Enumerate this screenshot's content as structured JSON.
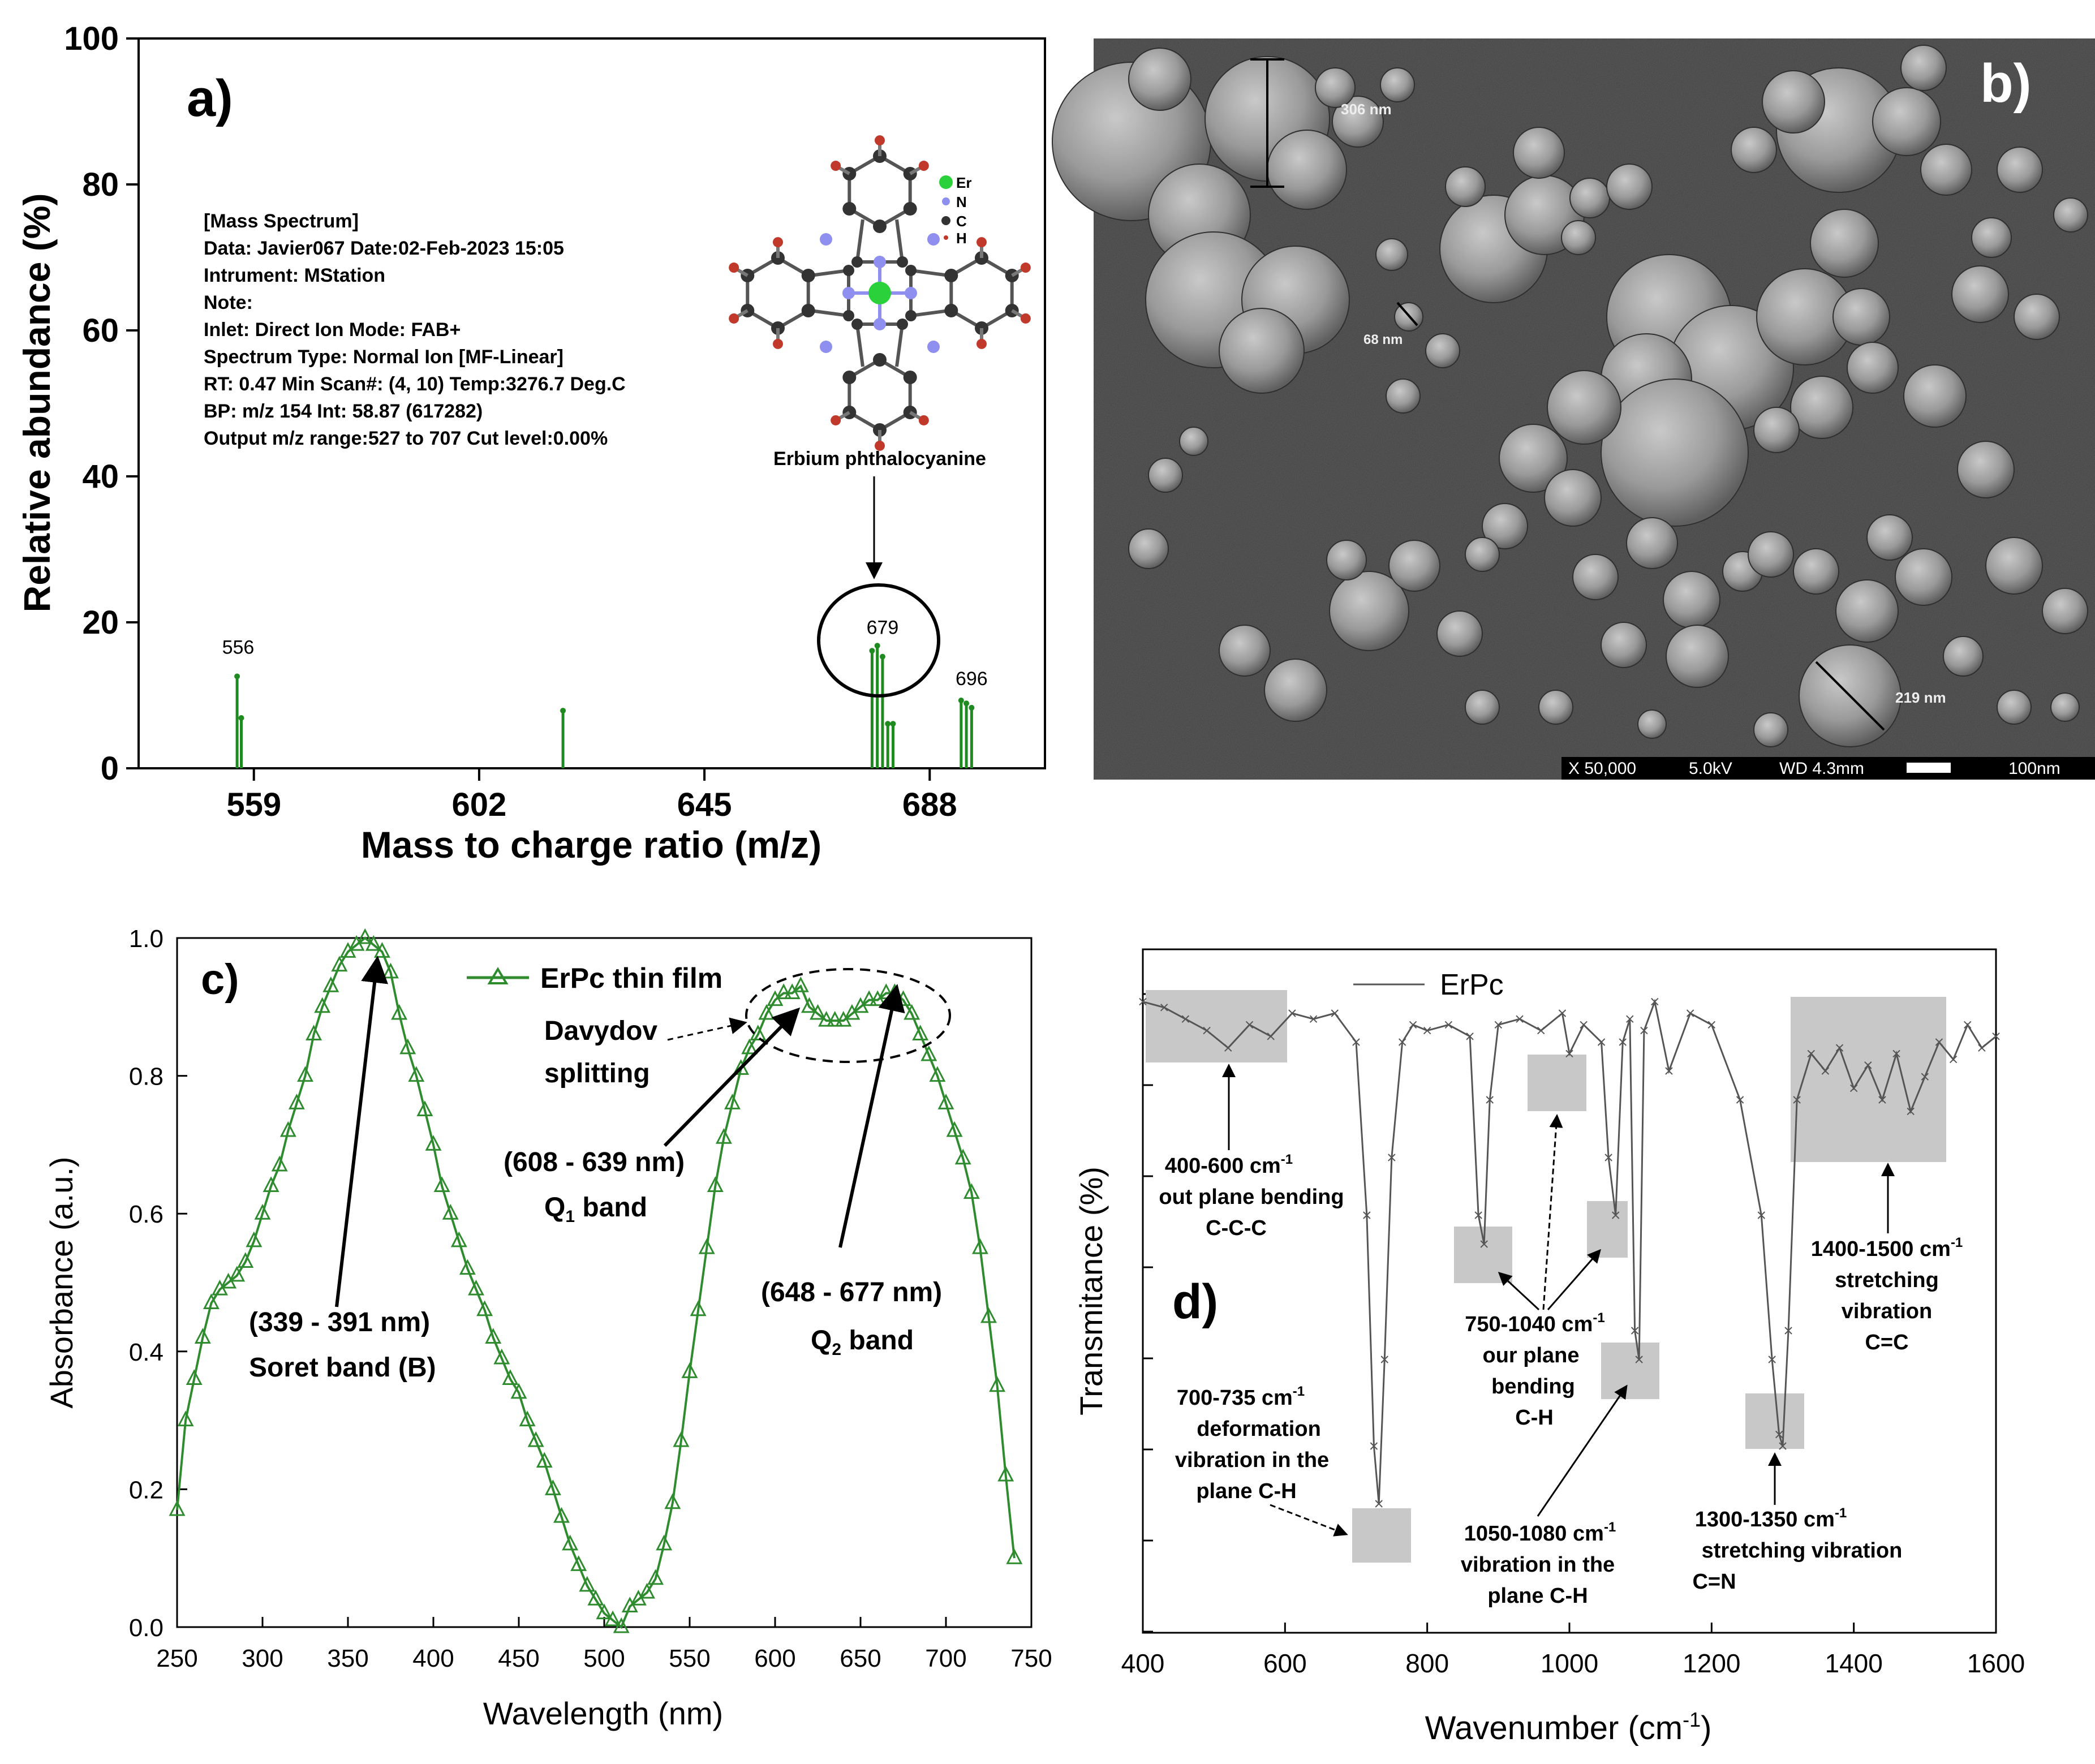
{
  "panels": {
    "a": {
      "label": "a)"
    },
    "b": {
      "label": "b)"
    },
    "c": {
      "label": "c)"
    },
    "d": {
      "label": "d)"
    }
  },
  "mass_info": {
    "lines": [
      "[Mass Spectrum]",
      "Data: Javier067     Date:02-Feb-2023 15:05",
      "Intrument: MStation",
      "Note:",
      "Inlet: Direct   Ion Mode: FAB+",
      "Spectrum Type: Normal Ion [MF-Linear]",
      "RT: 0.47 Min     Scan#: (4, 10) Temp:3276.7 Deg.C",
      "BP: m/z 154      Int: 58.87 (617282)",
      "Output m/z range:527 to 707     Cut level:0.00%"
    ]
  },
  "molecule": {
    "caption": "Erbium phthalocyanine",
    "legend": [
      {
        "symbol": "Er",
        "color": "#2bd13a"
      },
      {
        "symbol": "N",
        "color": "#8f8ff0"
      },
      {
        "symbol": "C",
        "color": "#333333"
      },
      {
        "symbol": "H",
        "color": "#c0392b"
      }
    ]
  },
  "sem": {
    "measurements": [
      {
        "label": "306 nm"
      },
      {
        "label": "68 nm"
      },
      {
        "label": "219 nm"
      }
    ],
    "info_bar": {
      "magnification": "X 50,000",
      "voltage": "5.0kV",
      "wd": "WD 4.3mm",
      "scale": "100nm"
    }
  },
  "chart_data": [
    {
      "panel": "a",
      "type": "bar",
      "xlabel": "Mass to charge ratio (m/z)",
      "ylabel": "Relative abundance (%)",
      "xlim": [
        537,
        710
      ],
      "ylim": [
        0,
        100
      ],
      "xticks": [
        559,
        602,
        645,
        688
      ],
      "yticks": [
        0,
        20,
        40,
        60,
        80,
        100
      ],
      "x": [
        555.8,
        556.6,
        618,
        677,
        678,
        679,
        680,
        681,
        694,
        695,
        696
      ],
      "values": [
        12.6,
        6.9,
        7.9,
        16.1,
        16.8,
        15.3,
        6.1,
        6.1,
        9.3,
        8.9,
        8.3
      ],
      "peak_labels": [
        {
          "x": 556,
          "text": "556"
        },
        {
          "x": 679,
          "text": "679"
        },
        {
          "x": 696,
          "text": "696"
        }
      ],
      "color": "#1f8a1f"
    },
    {
      "panel": "c",
      "type": "line",
      "xlabel": "Wavelength (nm)",
      "ylabel": "Absorbance (a.u.)",
      "xlim": [
        250,
        750
      ],
      "ylim": [
        0,
        1
      ],
      "xticks": [
        250,
        300,
        350,
        400,
        450,
        500,
        550,
        600,
        650,
        700,
        750
      ],
      "yticks": [
        0.0,
        0.2,
        0.4,
        0.6,
        0.8,
        1.0
      ],
      "legend_location": "top",
      "series": [
        {
          "name": "ErPc thin film",
          "color": "#2e8b2e",
          "x": [
            250,
            255,
            260,
            265,
            270,
            275,
            280,
            285,
            290,
            295,
            300,
            305,
            310,
            315,
            320,
            325,
            330,
            335,
            340,
            345,
            350,
            355,
            360,
            365,
            370,
            375,
            380,
            385,
            390,
            395,
            400,
            405,
            410,
            415,
            420,
            425,
            430,
            435,
            440,
            445,
            450,
            455,
            460,
            465,
            470,
            475,
            480,
            485,
            490,
            495,
            500,
            505,
            510,
            515,
            520,
            525,
            530,
            535,
            540,
            545,
            550,
            555,
            560,
            565,
            570,
            575,
            580,
            585,
            590,
            595,
            600,
            605,
            610,
            615,
            620,
            625,
            630,
            635,
            640,
            645,
            650,
            655,
            660,
            665,
            670,
            675,
            680,
            685,
            690,
            695,
            700,
            705,
            710,
            715,
            720,
            725,
            730,
            735,
            740
          ],
          "y": [
            0.17,
            0.3,
            0.36,
            0.42,
            0.47,
            0.49,
            0.5,
            0.51,
            0.53,
            0.56,
            0.6,
            0.64,
            0.67,
            0.72,
            0.76,
            0.8,
            0.86,
            0.9,
            0.93,
            0.96,
            0.98,
            0.99,
            1.0,
            0.99,
            0.98,
            0.95,
            0.89,
            0.84,
            0.8,
            0.75,
            0.7,
            0.64,
            0.6,
            0.56,
            0.52,
            0.49,
            0.46,
            0.42,
            0.39,
            0.36,
            0.34,
            0.3,
            0.27,
            0.24,
            0.2,
            0.16,
            0.12,
            0.09,
            0.06,
            0.04,
            0.02,
            0.01,
            0.0,
            0.03,
            0.04,
            0.05,
            0.07,
            0.12,
            0.18,
            0.27,
            0.37,
            0.46,
            0.55,
            0.64,
            0.71,
            0.76,
            0.81,
            0.84,
            0.86,
            0.89,
            0.91,
            0.92,
            0.92,
            0.93,
            0.9,
            0.89,
            0.88,
            0.88,
            0.88,
            0.89,
            0.9,
            0.91,
            0.91,
            0.92,
            0.92,
            0.91,
            0.89,
            0.86,
            0.83,
            0.8,
            0.76,
            0.72,
            0.68,
            0.63,
            0.55,
            0.45,
            0.35,
            0.22,
            0.1
          ]
        }
      ],
      "annotations": [
        {
          "text": "Davydov",
          "line2": "splitting"
        },
        {
          "text": "(339 - 391 nm)",
          "line2": "Soret band (B)"
        },
        {
          "text": "(608 - 639 nm)",
          "line2": "Q1 band"
        },
        {
          "text": "(648 - 677 nm)",
          "line2": "Q2 band"
        }
      ]
    },
    {
      "panel": "d",
      "type": "line",
      "xlabel": "Wavenumber (cm-1)",
      "ylabel": "Transmitance (%)",
      "xlim": [
        400,
        1600
      ],
      "xticks": [
        400,
        600,
        800,
        1000,
        1200,
        1400,
        1600
      ],
      "legend_location": "top-left",
      "series": [
        {
          "name": "ErPc",
          "color": "#555555",
          "x": [
            400,
            430,
            460,
            490,
            520,
            550,
            580,
            610,
            640,
            670,
            700,
            715,
            725,
            732,
            740,
            750,
            765,
            780,
            800,
            830,
            860,
            872,
            880,
            888,
            900,
            930,
            960,
            990,
            1000,
            1020,
            1045,
            1055,
            1065,
            1075,
            1085,
            1092,
            1098,
            1105,
            1120,
            1140,
            1170,
            1200,
            1240,
            1270,
            1285,
            1295,
            1300,
            1308,
            1320,
            1340,
            1360,
            1380,
            1400,
            1420,
            1440,
            1460,
            1480,
            1500,
            1520,
            1540,
            1560,
            1580,
            1600
          ],
          "y": [
            97,
            96,
            94,
            92,
            89,
            93,
            91,
            95,
            94,
            95,
            90,
            60,
            20,
            10,
            35,
            70,
            90,
            93,
            92,
            93,
            91,
            60,
            55,
            80,
            93,
            94,
            92,
            95,
            88,
            93,
            90,
            70,
            60,
            90,
            94,
            40,
            35,
            92,
            97,
            85,
            95,
            93,
            80,
            60,
            35,
            22,
            20,
            40,
            80,
            88,
            85,
            89,
            82,
            86,
            80,
            88,
            78,
            84,
            90,
            87,
            93,
            89,
            91
          ]
        }
      ],
      "annotations": [
        {
          "lines": [
            "400-600 cm-1",
            "out plane bending",
            "C-C-C"
          ]
        },
        {
          "lines": [
            "700-735 cm-1",
            "deformation",
            "vibration in the",
            "plane C-H"
          ]
        },
        {
          "lines": [
            "750-1040 cm-1",
            "our plane",
            "bending",
            "C-H"
          ]
        },
        {
          "lines": [
            "1050-1080 cm-1",
            "vibration in the",
            "plane C-H"
          ]
        },
        {
          "lines": [
            "1300-1350 cm-1",
            "stretching vibration",
            "C=N"
          ]
        },
        {
          "lines": [
            "1400-1500 cm-1",
            "stretching",
            "vibration",
            "C=C"
          ]
        }
      ]
    }
  ]
}
